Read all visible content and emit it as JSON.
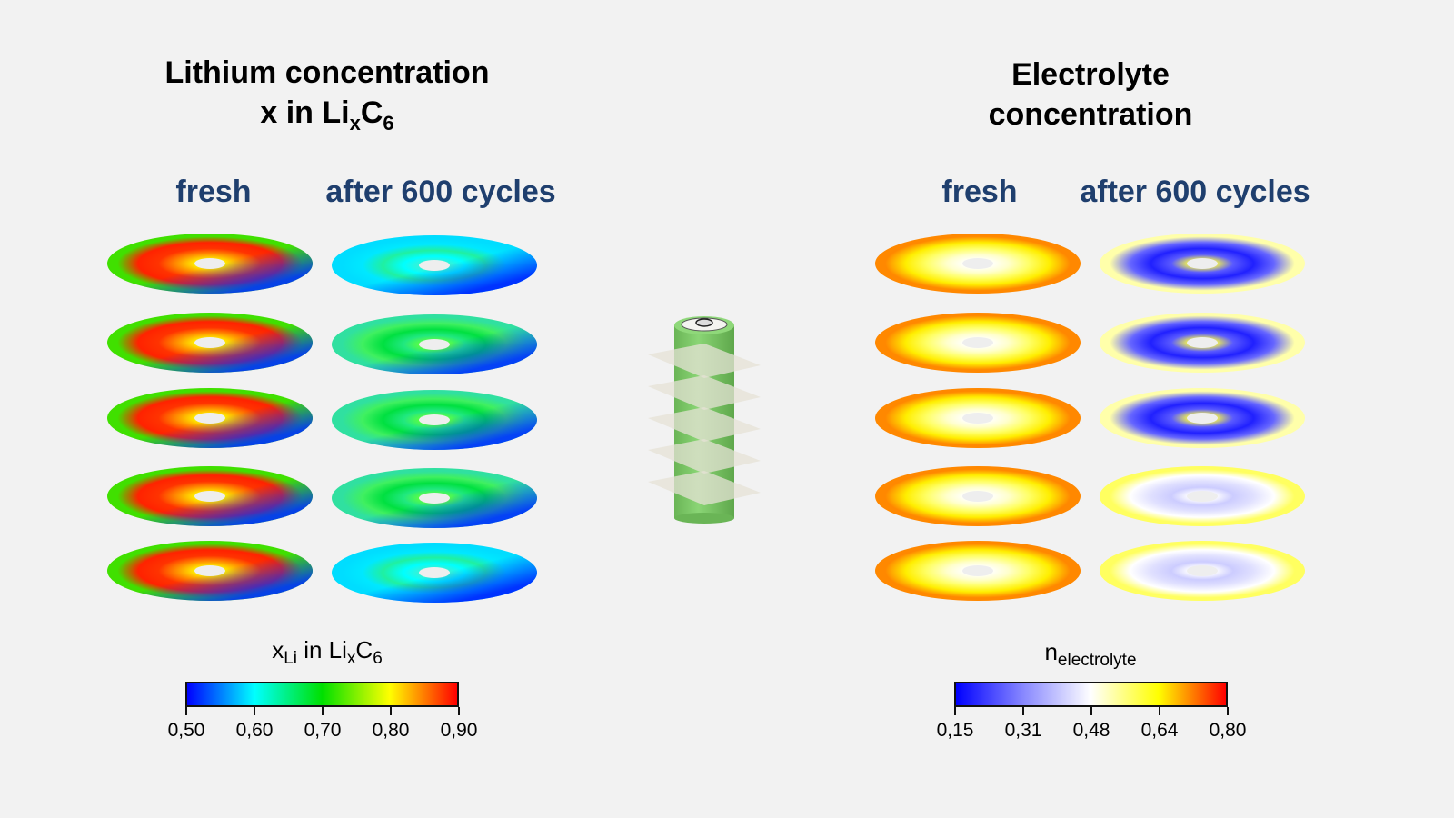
{
  "left_panel": {
    "title_line1": "Lithium concentration",
    "title_line2_prefix": "x in Li",
    "title_line2_sub1": "x",
    "title_line2_mid": "C",
    "title_line2_sub2": "6",
    "columns": [
      "fresh",
      "after 600 cycles"
    ],
    "colorbar": {
      "label_main": "x",
      "label_sub": "Li",
      "label_rest": " in Li",
      "label_sub2": "x",
      "label_c": "C",
      "label_sub3": "6",
      "ticks": [
        "0,50",
        "0,60",
        "0,70",
        "0,80",
        "0,90"
      ],
      "colors": [
        "#0000ff",
        "#00ffff",
        "#00e000",
        "#ffff00",
        "#ff0000"
      ]
    }
  },
  "right_panel": {
    "title_line1": "Electrolyte",
    "title_line2": "concentration",
    "columns": [
      "fresh",
      "after 600 cycles"
    ],
    "colorbar": {
      "label_main": "n",
      "label_sub": "electrolyte",
      "ticks": [
        "0,15",
        "0,31",
        "0,48",
        "0,64",
        "0,80"
      ],
      "colors": [
        "#0000ff",
        "#8888ff",
        "#ffffff",
        "#ffff00",
        "#ff0000"
      ]
    }
  },
  "center": {
    "object": "cylindrical-battery-cell",
    "slice_count": 5,
    "body_color": "#7dc768"
  }
}
